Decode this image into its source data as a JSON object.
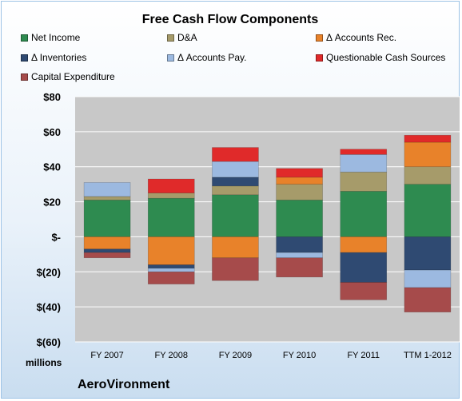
{
  "chart_data": {
    "type": "bar",
    "stacked": true,
    "title": "Free Cash Flow Components",
    "units_label": "millions",
    "company": "AeroVironment",
    "categories": [
      "FY 2007",
      "FY 2008",
      "FY 2009",
      "FY 2010",
      "FY 2011",
      "TTM 1-2012"
    ],
    "ylim": [
      -60,
      80
    ],
    "yticks": [
      80,
      60,
      40,
      20,
      0,
      -20,
      -40,
      -60
    ],
    "ytick_labels": [
      "$80",
      "$60",
      "$40",
      "$20",
      "$-",
      "$(20)",
      "$(40)",
      "$(60)"
    ],
    "grid": true,
    "legend_position": "top",
    "series": [
      {
        "name": "Net Income",
        "color": "#2e8b50",
        "values": [
          21,
          22,
          24,
          21,
          26,
          30
        ]
      },
      {
        "name": "D&A",
        "color": "#a69b6a",
        "values": [
          2,
          3,
          5,
          9,
          11,
          10
        ]
      },
      {
        "name": "Δ Accounts Rec.",
        "color": "#e8822a",
        "values": [
          -7,
          -16,
          -12,
          4,
          -9,
          14
        ]
      },
      {
        "name": "Δ Inventories",
        "color": "#2f4a72",
        "values": [
          -2,
          -2,
          5,
          -9,
          -17,
          -19
        ]
      },
      {
        "name": "Δ Accounts Pay.",
        "color": "#9cb9e0",
        "values": [
          8,
          -2,
          9,
          -3,
          10,
          -10
        ]
      },
      {
        "name": "Questionable Cash Sources",
        "color": "#e02a2a",
        "values": [
          0,
          8,
          8,
          5,
          3,
          4
        ]
      },
      {
        "name": "Capital Expenditure",
        "color": "#a64b4b",
        "values": [
          -3,
          -7,
          -13,
          -11,
          -10,
          -14
        ]
      }
    ]
  }
}
